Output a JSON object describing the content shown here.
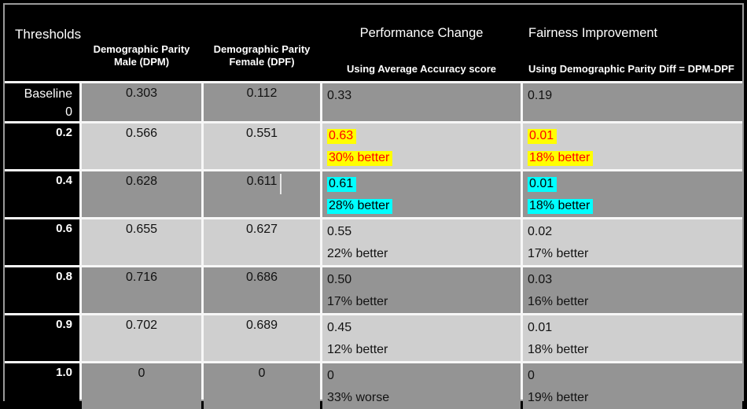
{
  "header": {
    "thresholds": "Thresholds",
    "dpm_line1": "Demographic Parity",
    "dpm_line2": "Male (DPM)",
    "dpf_line1": "Demographic Parity",
    "dpf_line2": "Female (DPF)",
    "performance_title": "Performance Change",
    "performance_subtitle": "Using Average Accuracy score",
    "fairness_title": "Fairness Improvement",
    "fairness_subtitle": "Using Demographic Parity Diff = DPM-DPF"
  },
  "rows": [
    {
      "threshold_line1": "Baseline",
      "threshold_line2": "0",
      "dpm": "0.303",
      "dpf": "0.112",
      "performance_value": "0.33",
      "performance_note": "",
      "fairness_value": "0.19",
      "fairness_note": "",
      "highlight": "none"
    },
    {
      "threshold_line1": "0.2",
      "dpm": "0.566",
      "dpf": "0.551",
      "performance_value": "0.63",
      "performance_note": "30% better",
      "fairness_value": "0.01",
      "fairness_note": "18% better",
      "highlight": "yellow"
    },
    {
      "threshold_line1": "0.4",
      "dpm": "0.628",
      "dpf": "0.611",
      "performance_value": "0.61",
      "performance_note": "28% better",
      "fairness_value": "0.01",
      "fairness_note": "18% better",
      "highlight": "cyan"
    },
    {
      "threshold_line1": "0.6",
      "dpm": "0.655",
      "dpf": "0.627",
      "performance_value": "0.55",
      "performance_note": "22% better",
      "fairness_value": "0.02",
      "fairness_note": "17% better",
      "highlight": "none"
    },
    {
      "threshold_line1": "0.8",
      "dpm": "0.716",
      "dpf": "0.686",
      "performance_value": "0.50",
      "performance_note": "17% better",
      "fairness_value": "0.03",
      "fairness_note": "16% better",
      "highlight": "none"
    },
    {
      "threshold_line1": "0.9",
      "dpm": "0.702",
      "dpf": "0.689",
      "performance_value": "0.45",
      "performance_note": "12% better",
      "fairness_value": "0.01",
      "fairness_note": "18% better",
      "highlight": "none"
    },
    {
      "threshold_line1": "1.0",
      "dpm": "0",
      "dpf": "0",
      "performance_value": "0",
      "performance_note": "33% worse",
      "fairness_value": "0",
      "fairness_note": "19% better",
      "highlight": "none"
    }
  ],
  "colors": {
    "row_dark": "#949494",
    "row_light": "#CFCFCF",
    "header_bg": "#000000",
    "highlight_yellow": "#FFFF00",
    "highlight_yellow_text": "#FF0000",
    "highlight_cyan": "#00FFFF",
    "highlight_cyan_text": "#000000"
  }
}
